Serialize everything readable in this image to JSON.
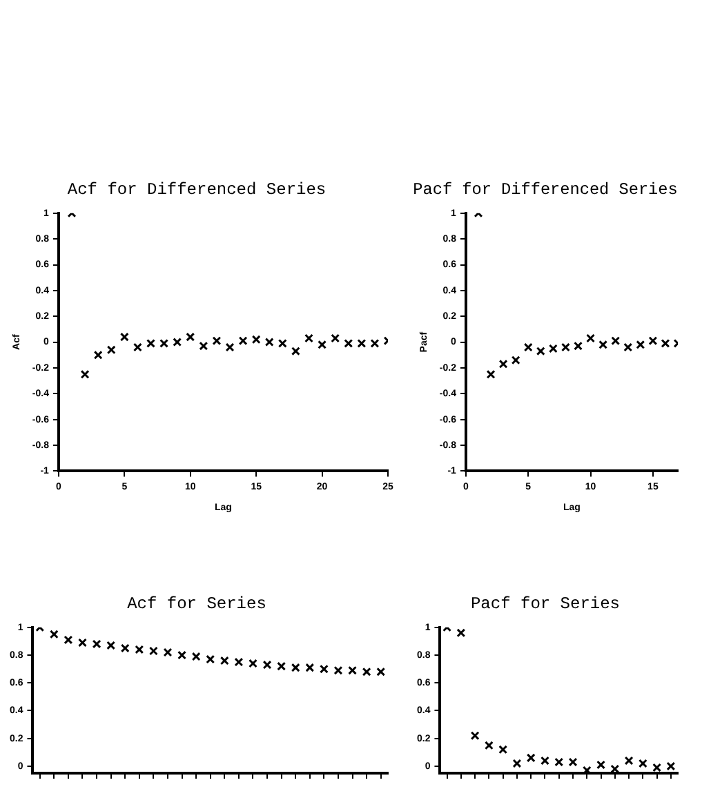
{
  "chart_data": [
    {
      "type": "scatter",
      "title": "Acf for Differenced Series",
      "xlabel": "Lag",
      "ylabel": "Acf",
      "color": "#000000",
      "marker": "cross",
      "grid": false,
      "x": [
        1,
        2,
        3,
        4,
        5,
        6,
        7,
        8,
        9,
        10,
        11,
        12,
        13,
        14,
        15,
        16,
        17,
        18,
        19,
        20,
        21,
        22,
        23,
        24,
        25
      ],
      "values": [
        1,
        -0.25,
        -0.1,
        -0.06,
        0.04,
        -0.04,
        -0.01,
        -0.01,
        0,
        0.04,
        -0.03,
        0.01,
        -0.04,
        0.01,
        0.02,
        0,
        -0.01,
        -0.07,
        0.03,
        -0.02,
        0.03,
        -0.01,
        -0.01,
        -0.01,
        0.01
      ],
      "xlim": [
        0,
        25
      ],
      "xticks": [
        0,
        5,
        10,
        15,
        20,
        25
      ],
      "ylim": [
        -1,
        1
      ],
      "yticks": [
        -1,
        -0.8,
        -0.6,
        -0.4,
        -0.2,
        0,
        0.2,
        0.4,
        0.6,
        0.8,
        1
      ]
    },
    {
      "type": "scatter",
      "title": "Pacf for Differenced Series",
      "xlabel": "Lag",
      "ylabel": "Pacf",
      "color": "#000000",
      "marker": "cross",
      "grid": false,
      "x": [
        1,
        2,
        3,
        4,
        5,
        6,
        7,
        8,
        9,
        10,
        11,
        12,
        13,
        14,
        15,
        16,
        17
      ],
      "values": [
        1,
        -0.25,
        -0.17,
        -0.14,
        -0.04,
        -0.07,
        -0.05,
        -0.04,
        -0.03,
        0.03,
        -0.02,
        0.01,
        -0.04,
        -0.02,
        0.01,
        -0.01,
        -0.01
      ],
      "xlim": [
        0,
        17
      ],
      "xticks": [
        0,
        5,
        10,
        15
      ],
      "ylim": [
        -1,
        1
      ],
      "yticks": [
        -1,
        -0.8,
        -0.6,
        -0.4,
        -0.2,
        0,
        0.2,
        0.4,
        0.6,
        0.8,
        1
      ]
    },
    {
      "type": "scatter",
      "title": "Acf for Series",
      "color": "#000000",
      "marker": "cross",
      "grid": false,
      "tick_labels": "y",
      "categories": [
        null,
        null,
        null,
        null,
        null,
        null,
        null,
        null,
        null,
        null,
        null,
        null,
        null,
        null,
        null,
        null,
        null,
        null,
        null,
        null,
        null,
        null,
        null,
        null,
        null
      ],
      "values": [
        1,
        0.95,
        0.91,
        0.89,
        0.88,
        0.87,
        0.85,
        0.84,
        0.83,
        0.82,
        0.8,
        0.79,
        0.77,
        0.76,
        0.75,
        0.74,
        0.73,
        0.72,
        0.71,
        0.71,
        0.7,
        0.69,
        0.69,
        0.68,
        0.68
      ],
      "ylim": [
        -0.05,
        1
      ],
      "yticks": [
        0,
        0.2,
        0.4,
        0.6,
        0.8,
        1
      ]
    },
    {
      "type": "scatter",
      "title": "Pacf for Series",
      "color": "#000000",
      "marker": "cross",
      "grid": false,
      "tick_labels": "y",
      "categories": [
        null,
        null,
        null,
        null,
        null,
        null,
        null,
        null,
        null,
        null,
        null,
        null,
        null,
        null,
        null,
        null,
        null
      ],
      "values": [
        1,
        0.96,
        0.22,
        0.15,
        0.12,
        0.02,
        0.06,
        0.04,
        0.03,
        0.03,
        -0.03,
        0.01,
        -0.02,
        0.04,
        0.02,
        -0.01,
        0
      ],
      "ylim": [
        -0.05,
        1
      ],
      "yticks": [
        0,
        0.2,
        0.4,
        0.6,
        0.8,
        1
      ]
    }
  ]
}
